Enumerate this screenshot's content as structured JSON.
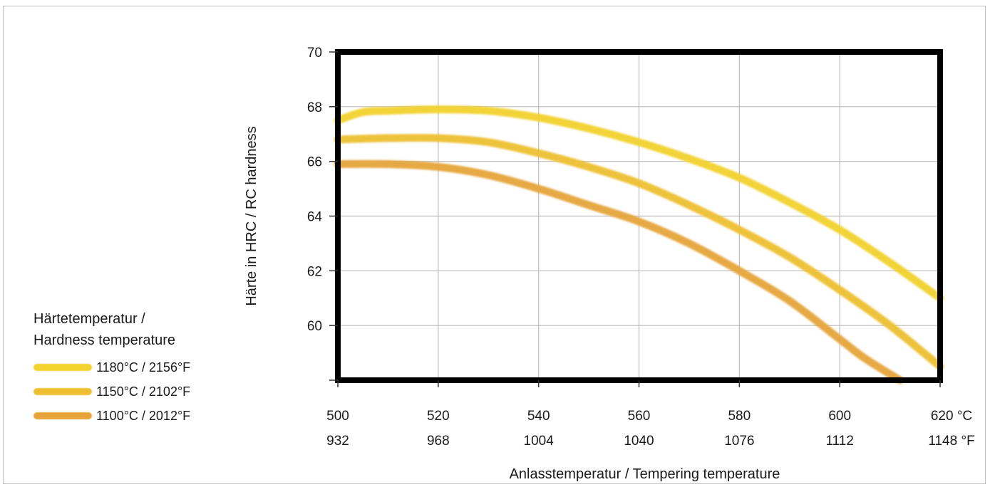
{
  "chart_data": {
    "type": "line",
    "xlabel": "Anlasstemperatur / Tempering temperature",
    "ylabel": "Härte in HRC / RC hardness",
    "x_ticks": [
      500,
      520,
      540,
      560,
      580,
      600,
      620
    ],
    "x_ticks_secondary": [
      932,
      968,
      1004,
      1040,
      1076,
      1112,
      1148
    ],
    "x_unit_primary": "°C",
    "x_unit_secondary": "°F",
    "y_ticks": [
      60,
      62,
      64,
      66,
      68,
      70
    ],
    "xlim": [
      500,
      620
    ],
    "ylim": [
      58,
      70
    ],
    "grid": true,
    "legend_position": "left",
    "legend_title": [
      "Härtetemperatur /",
      "Hardness temperature"
    ],
    "series": [
      {
        "name": "1180°C / 2156°F",
        "color": "#f2d22e",
        "x": [
          500,
          505,
          510,
          520,
          530,
          540,
          550,
          560,
          570,
          580,
          590,
          600,
          610,
          620
        ],
        "y": [
          67.5,
          67.8,
          67.85,
          67.9,
          67.85,
          67.6,
          67.2,
          66.7,
          66.1,
          65.4,
          64.5,
          63.5,
          62.3,
          61.0
        ]
      },
      {
        "name": "1150°C / 2102°F",
        "color": "#eec031",
        "x": [
          500,
          510,
          520,
          530,
          540,
          550,
          560,
          570,
          580,
          590,
          600,
          610,
          620
        ],
        "y": [
          66.8,
          66.85,
          66.85,
          66.7,
          66.3,
          65.8,
          65.2,
          64.4,
          63.5,
          62.5,
          61.3,
          60.0,
          58.5
        ]
      },
      {
        "name": "1100°C / 2012°F",
        "color": "#e5a53a",
        "x": [
          500,
          510,
          520,
          530,
          540,
          550,
          560,
          570,
          580,
          590,
          600,
          605,
          612
        ],
        "y": [
          65.9,
          65.9,
          65.8,
          65.5,
          65.0,
          64.4,
          63.8,
          63.0,
          62.0,
          60.9,
          59.5,
          58.8,
          58.0
        ]
      }
    ]
  }
}
